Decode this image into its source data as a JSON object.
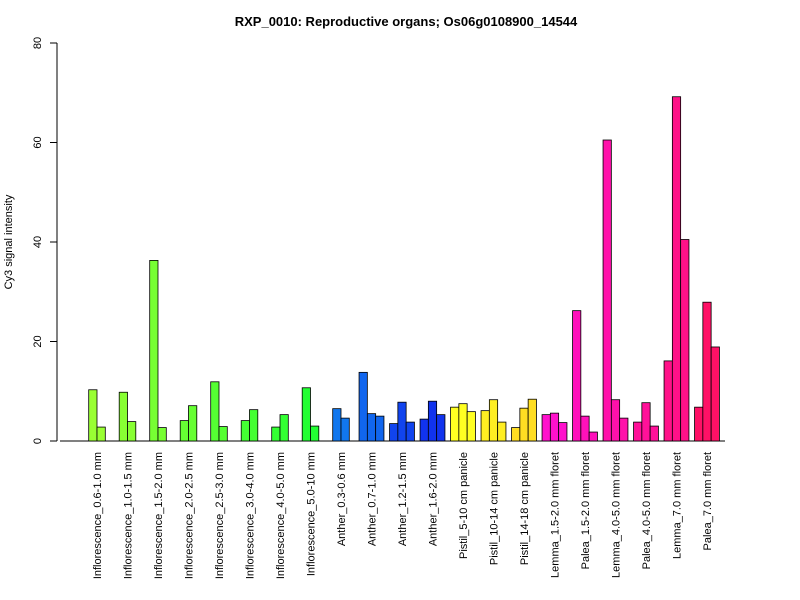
{
  "chart_data": {
    "type": "bar",
    "title": "RXP_0010: Reproductive organs; Os06g0108900_14544",
    "xlabel": "",
    "ylabel": "Cy3 signal intensity",
    "ylim": [
      0,
      80
    ],
    "yticks": [
      0,
      20,
      40,
      60,
      80
    ],
    "grid": false,
    "groups": [
      {
        "label": "Inflorescence_0.6-1.0 mm",
        "color": "#99ff33",
        "values": [
          10.3,
          2.8
        ]
      },
      {
        "label": "Inflorescence_1.0-1.5 mm",
        "color": "#88ff33",
        "values": [
          9.8,
          3.9
        ]
      },
      {
        "label": "Inflorescence_1.5-2.0 mm",
        "color": "#77ff33",
        "values": [
          36.3,
          2.7
        ]
      },
      {
        "label": "Inflorescence_2.0-2.5 mm",
        "color": "#66ff33",
        "values": [
          4.1,
          7.1
        ]
      },
      {
        "label": "Inflorescence_2.5-3.0 mm",
        "color": "#55ff33",
        "values": [
          11.9,
          2.9
        ]
      },
      {
        "label": "Inflorescence_3.0-4.0 mm",
        "color": "#44ff33",
        "values": [
          4.1,
          6.3
        ]
      },
      {
        "label": "Inflorescence_4.0-5.0 mm",
        "color": "#33ff33",
        "values": [
          2.8,
          5.3
        ]
      },
      {
        "label": "Inflorescence_5.0-10 mm",
        "color": "#22ff33",
        "values": [
          10.7,
          3.0
        ]
      },
      {
        "label": "Anther_0.3-0.6 mm",
        "color": "#1177ee",
        "values": [
          6.5,
          4.6
        ]
      },
      {
        "label": "Anther_0.7-1.0 mm",
        "color": "#1166ee",
        "values": [
          13.8,
          5.5,
          5.0
        ]
      },
      {
        "label": "Anther_1.2-1.5 mm",
        "color": "#1144ee",
        "values": [
          3.5,
          7.8,
          3.8
        ]
      },
      {
        "label": "Anther_1.6-2.0 mm",
        "color": "#1133ee",
        "values": [
          4.4,
          8.0,
          5.3
        ]
      },
      {
        "label": "Pistil_5-10 cm panicle",
        "color": "#ffff22",
        "values": [
          6.8,
          7.5,
          5.9
        ]
      },
      {
        "label": "Pistil_10-14 cm panicle",
        "color": "#ffee22",
        "values": [
          6.1,
          8.3,
          3.8
        ]
      },
      {
        "label": "Pistil_14-18 cm panicle",
        "color": "#ffdd22",
        "values": [
          2.7,
          6.6,
          8.4
        ]
      },
      {
        "label": "Lemma_1.5-2.0 mm floret",
        "color": "#ff11cc",
        "values": [
          5.3,
          5.6,
          3.7
        ]
      },
      {
        "label": "Palea_1.5-2.0 mm floret",
        "color": "#ff11bb",
        "values": [
          26.2,
          5.0,
          1.8
        ]
      },
      {
        "label": "Lemma_4.0-5.0 mm floret",
        "color": "#ff11aa",
        "values": [
          60.5,
          8.3,
          4.6
        ]
      },
      {
        "label": "Palea_4.0-5.0 mm floret",
        "color": "#ff1199",
        "values": [
          3.8,
          7.7,
          3.0
        ]
      },
      {
        "label": "Lemma_7.0 mm floret",
        "color": "#ff1188",
        "values": [
          16.1,
          69.2,
          40.5
        ]
      },
      {
        "label": "Palea_7.0 mm floret",
        "color": "#ff1166",
        "values": [
          6.8,
          27.9,
          18.9
        ]
      }
    ]
  }
}
